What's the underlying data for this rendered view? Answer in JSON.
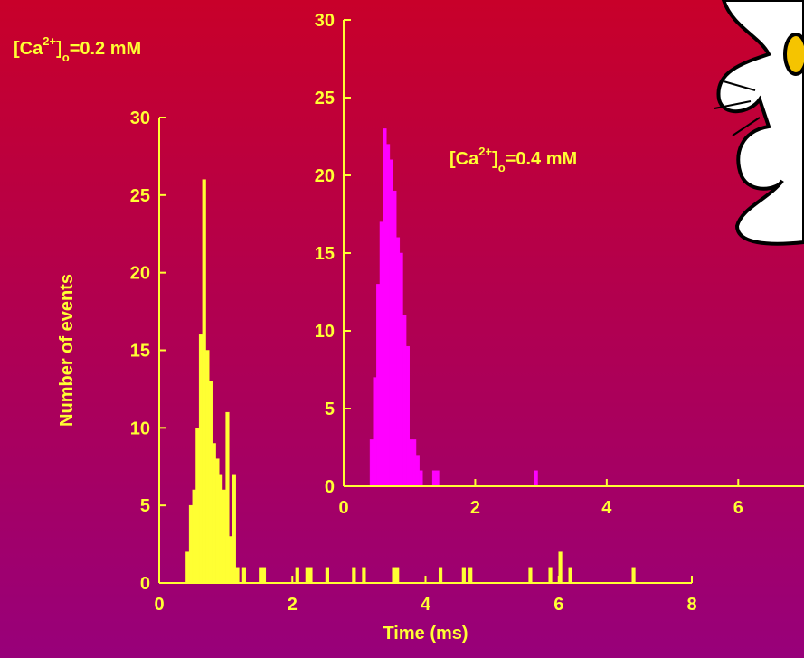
{
  "chart_data": [
    {
      "type": "histogram",
      "color": "#ffff33",
      "annotation": {
        "base": "[Ca",
        "sup": "2+",
        "close": "]",
        "sub": "o",
        "rest": "=0.2 mM"
      },
      "xlabel": "Time (ms)",
      "ylabel": "Number of events",
      "bins": [
        0.4,
        0.45,
        0.5,
        0.55,
        0.6,
        0.65,
        0.7,
        0.75,
        0.8,
        0.85,
        0.9,
        0.95,
        1.0,
        1.05,
        1.1,
        1.15,
        1.2,
        1.25,
        1.3,
        1.5,
        1.55,
        1.6,
        2.05,
        2.1,
        2.2,
        2.25,
        2.3,
        2.5,
        2.55,
        2.9,
        2.95,
        3.05,
        3.1,
        3.5,
        3.55,
        3.6,
        4.2,
        4.25,
        4.55,
        4.6,
        4.65,
        4.7,
        5.55,
        5.6,
        5.85,
        5.9,
        6.0,
        6.05,
        6.15,
        6.2,
        7.1,
        7.15
      ],
      "values": [
        2,
        5,
        6,
        10,
        16,
        26,
        15,
        13,
        9,
        8,
        7,
        6,
        11,
        3,
        7,
        1,
        0,
        1,
        0,
        1,
        1,
        0,
        1,
        0,
        1,
        1,
        0,
        1,
        0,
        1,
        0,
        1,
        0,
        1,
        1,
        0,
        1,
        0,
        1,
        0,
        1,
        0,
        1,
        0,
        1,
        0,
        2,
        0,
        1,
        0,
        1
      ],
      "xlim": [
        0,
        8
      ],
      "xticks": [
        0,
        2,
        4,
        6,
        8
      ],
      "ylim": [
        0,
        30
      ],
      "yticks": [
        0,
        5,
        10,
        15,
        20,
        25,
        30
      ]
    },
    {
      "type": "histogram",
      "color": "#ff00ff",
      "annotation": {
        "base": "[Ca",
        "sup": "2+",
        "close": "]",
        "sub": "o",
        "rest": "=0.4 mM"
      },
      "bins": [
        0.4,
        0.45,
        0.5,
        0.55,
        0.6,
        0.65,
        0.7,
        0.75,
        0.8,
        0.85,
        0.9,
        0.95,
        1.0,
        1.05,
        1.1,
        1.15,
        1.2,
        1.35,
        1.45,
        2.9,
        2.95
      ],
      "values": [
        3,
        7,
        13,
        17,
        23,
        22,
        21,
        19,
        16,
        15,
        11,
        9,
        3,
        3,
        2,
        1,
        0,
        1,
        0,
        1
      ],
      "xlim": [
        0,
        7
      ],
      "xticks": [
        0,
        2,
        4,
        6
      ],
      "ylim": [
        0,
        30
      ],
      "yticks": [
        0,
        5,
        10,
        15,
        20,
        25,
        30
      ]
    }
  ]
}
